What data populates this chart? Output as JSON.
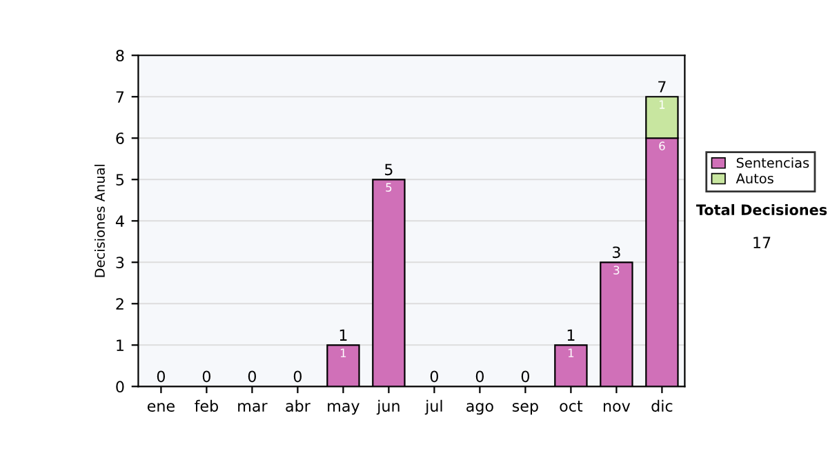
{
  "chart_data": {
    "type": "bar",
    "stacked": true,
    "ylabel": "Decisiones Anual",
    "categories": [
      "ene",
      "feb",
      "mar",
      "abr",
      "may",
      "jun",
      "jul",
      "ago",
      "sep",
      "oct",
      "nov",
      "dic"
    ],
    "series": [
      {
        "name": "Sentencias",
        "color": "#d070b8",
        "values": [
          0,
          0,
          0,
          0,
          1,
          5,
          0,
          0,
          0,
          1,
          3,
          6
        ],
        "value_labels": [
          null,
          null,
          null,
          null,
          "1",
          "5",
          null,
          null,
          null,
          "1",
          "3",
          "6"
        ]
      },
      {
        "name": "Autos",
        "color": "#c8e6a0",
        "values": [
          0,
          0,
          0,
          0,
          0,
          0,
          0,
          0,
          0,
          0,
          0,
          1
        ],
        "value_labels": [
          null,
          null,
          null,
          null,
          null,
          null,
          null,
          null,
          null,
          null,
          null,
          "1"
        ]
      }
    ],
    "totals": [
      "0",
      "0",
      "0",
      "0",
      "1",
      "5",
      "0",
      "0",
      "0",
      "1",
      "3",
      "7"
    ],
    "ylim": [
      0,
      8
    ],
    "yticks": [
      0,
      1,
      2,
      3,
      4,
      5,
      6,
      7,
      8
    ],
    "grid": "y",
    "legend": "right",
    "annotations": [
      "Total Decisiones",
      "17"
    ]
  }
}
